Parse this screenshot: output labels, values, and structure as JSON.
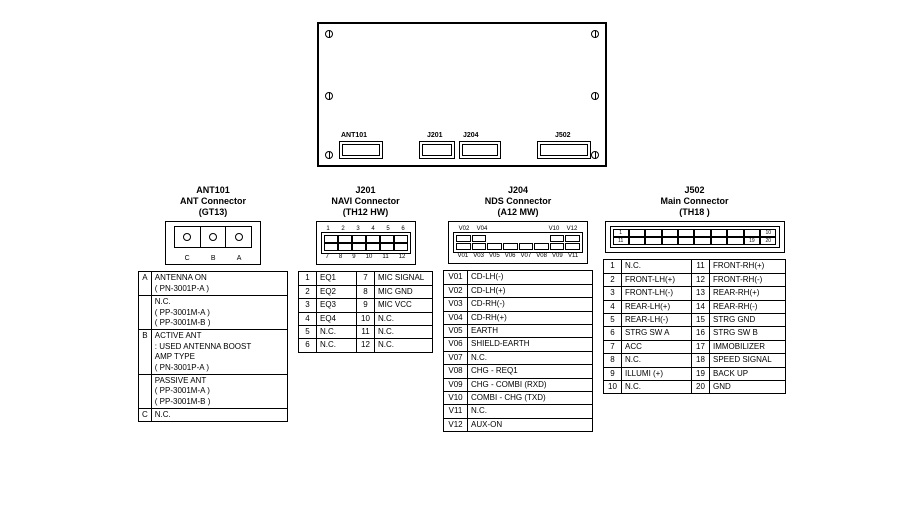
{
  "chassis": {
    "labels": {
      "ant101": "ANT101",
      "j201": "J201",
      "j204": "J204",
      "j502": "J502"
    }
  },
  "ant101": {
    "hdr1": "ANT101",
    "hdr2": "ANT Connector",
    "hdr3": "(GT13)",
    "grid_letters": [
      "C",
      "B",
      "A"
    ],
    "rows": [
      {
        "side": "A",
        "text": "ANTENNA ON\n( PN-3001P-A )"
      },
      {
        "side": "",
        "text": "N.C.\n( PP-3001M-A )\n( PP-3001M-B )"
      },
      {
        "side": "B",
        "text": "ACTIVE ANT\n: USED ANTENNA BOOST\n  AMP TYPE\n( PN-3001P-A )"
      },
      {
        "side": "",
        "text": "PASSIVE ANT\n( PP-3001M-A )\n( PP-3001M-B )"
      },
      {
        "side": "C",
        "text": "N.C."
      }
    ]
  },
  "j201": {
    "hdr1": "J201",
    "hdr2": "NAVI Connector",
    "hdr3": "(TH12 HW)",
    "top_nums": [
      "1",
      "2",
      "3",
      "4",
      "5",
      "6"
    ],
    "bot_nums": [
      "7",
      "8",
      "9",
      "10",
      "11",
      "12"
    ],
    "left": [
      [
        "1",
        "EQ1"
      ],
      [
        "2",
        "EQ2"
      ],
      [
        "3",
        "EQ3"
      ],
      [
        "4",
        "EQ4"
      ],
      [
        "5",
        "N.C."
      ],
      [
        "6",
        "N.C."
      ]
    ],
    "right": [
      [
        "7",
        "MIC SIGNAL"
      ],
      [
        "8",
        "MIC GND"
      ],
      [
        "9",
        "MIC VCC"
      ],
      [
        "10",
        "N.C."
      ],
      [
        "11",
        "N.C."
      ],
      [
        "12",
        "N.C."
      ]
    ]
  },
  "j204": {
    "hdr1": "J204",
    "hdr2": "NDS Connector",
    "hdr3": "(A12 MW)",
    "top_lbls": [
      "V02",
      "V04",
      "",
      "",
      "",
      "V10",
      "V12"
    ],
    "bot_lbls": [
      "V01",
      "V03",
      "V05",
      "V06",
      "V07",
      "V08",
      "V09",
      "V11"
    ],
    "pins": [
      [
        "V01",
        "CD-LH(-)"
      ],
      [
        "V02",
        "CD-LH(+)"
      ],
      [
        "V03",
        "CD-RH(-)"
      ],
      [
        "V04",
        "CD-RH(+)"
      ],
      [
        "V05",
        "EARTH"
      ],
      [
        "V06",
        "SHIELD-EARTH"
      ],
      [
        "V07",
        "N.C."
      ],
      [
        "V08",
        "CHG - REQ1"
      ],
      [
        "V09",
        "CHG - COMBI (RXD)"
      ],
      [
        "V10",
        "COMBI - CHG (TXD)"
      ],
      [
        "V11",
        "N.C."
      ],
      [
        "V12",
        "AUX-ON"
      ]
    ]
  },
  "j502": {
    "hdr1": "J502",
    "hdr2": "Main Connector",
    "hdr3": "(TH18 )",
    "left": [
      [
        "1",
        "N.C."
      ],
      [
        "2",
        "FRONT-LH(+)"
      ],
      [
        "3",
        "FRONT-LH(-)"
      ],
      [
        "4",
        "REAR-LH(+)"
      ],
      [
        "5",
        "REAR-LH(-)"
      ],
      [
        "6",
        "STRG SW A"
      ],
      [
        "7",
        "ACC"
      ],
      [
        "8",
        "N.C."
      ],
      [
        "9",
        "ILLUMI (+)"
      ],
      [
        "10",
        "N.C."
      ]
    ],
    "right": [
      [
        "11",
        "FRONT-RH(+)"
      ],
      [
        "12",
        "FRONT-RH(-)"
      ],
      [
        "13",
        "REAR-RH(+)"
      ],
      [
        "14",
        "REAR-RH(-)"
      ],
      [
        "15",
        "STRG GND"
      ],
      [
        "16",
        "STRG SW B"
      ],
      [
        "17",
        "IMMOBILIZER"
      ],
      [
        "18",
        "SPEED SIGNAL"
      ],
      [
        "19",
        "BACK UP"
      ],
      [
        "20",
        "GND"
      ]
    ]
  },
  "style": {
    "bg": "#ffffff",
    "fg": "#000000",
    "font_size_base": 9,
    "font_size_small": 8,
    "font_size_tiny": 7
  }
}
